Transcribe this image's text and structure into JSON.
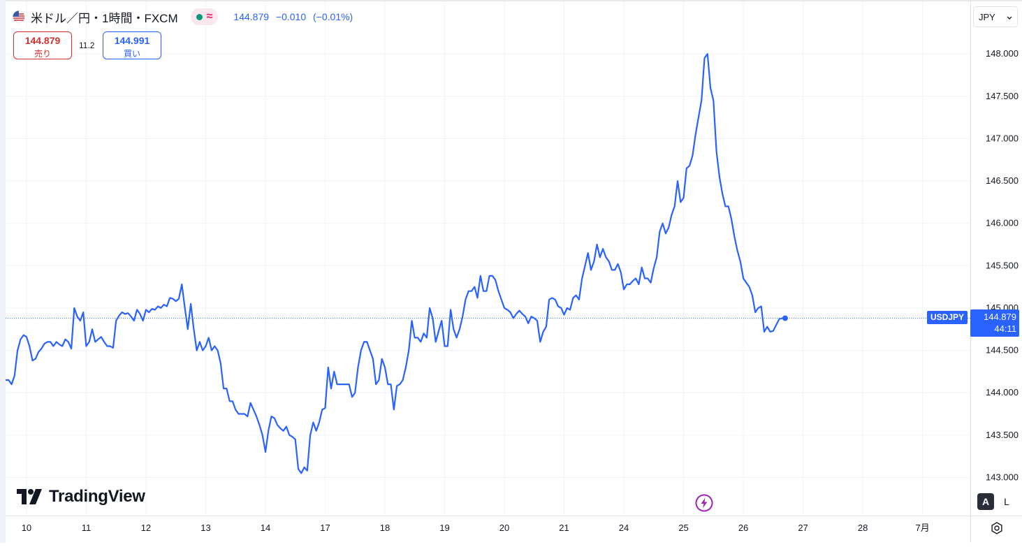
{
  "header": {
    "title": "米ドル／円・1時間・FXCM",
    "last": "144.879",
    "change": "−0.010",
    "change_pct": "(−0.01%)"
  },
  "trade": {
    "sell_price": "144.879",
    "sell_label": "売り",
    "spread": "11.2",
    "buy_price": "144.991",
    "buy_label": "買い"
  },
  "currency": "JPY",
  "last_price_label": {
    "symbol": "USDJPY",
    "price": "144.879",
    "countdown": "44:11"
  },
  "brand": "TradingView",
  "buttons": {
    "auto": "A",
    "log": "L"
  },
  "colors": {
    "line": "#2962ff",
    "sell": "#d32f2f",
    "buy": "#2962ff",
    "market_open": "#089981"
  },
  "chart_data": {
    "type": "line",
    "series": [
      {
        "x_start": -0.35,
        "x_step": 0.05,
        "values": [
          144.15,
          144.15,
          144.1,
          144.2,
          144.5,
          144.63,
          144.68,
          144.66,
          144.55,
          144.38,
          144.4,
          144.48,
          144.52,
          144.58,
          144.6,
          144.6,
          144.55,
          144.6,
          144.57,
          144.55,
          144.63,
          144.6,
          144.52,
          145.0,
          144.9,
          144.85,
          144.95,
          144.55,
          144.6,
          144.75,
          144.6,
          144.63,
          144.66,
          144.6,
          144.55,
          144.55,
          144.53,
          144.85,
          144.91,
          144.95,
          144.93,
          144.94,
          144.9,
          144.85,
          144.98,
          144.93,
          144.85,
          144.98,
          144.95,
          144.99,
          144.98,
          145.02,
          145.0,
          145.04,
          145.02,
          145.12,
          145.11,
          145.08,
          145.11,
          145.28,
          145.01,
          144.75,
          145.05,
          144.75,
          144.5,
          144.6,
          144.5,
          144.55,
          144.65,
          144.5,
          144.55,
          144.5,
          144.35,
          144.05,
          144.05,
          143.9,
          143.9,
          143.8,
          143.75,
          143.75,
          143.75,
          143.72,
          143.88,
          143.8,
          143.72,
          143.62,
          143.5,
          143.3,
          143.55,
          143.72,
          143.7,
          143.62,
          143.58,
          143.55,
          143.6,
          143.5,
          143.48,
          143.45,
          143.1,
          143.05,
          143.12,
          143.08,
          143.5,
          143.65,
          143.55,
          143.65,
          143.8,
          143.82,
          144.3,
          144.05,
          144.25,
          144.1,
          144.1,
          144.1,
          144.1,
          144.1,
          143.95,
          144.0,
          144.3,
          144.5,
          144.6,
          144.6,
          144.5,
          144.4,
          144.1,
          144.15,
          144.4,
          144.3,
          144.1,
          144.1,
          143.8,
          144.08,
          144.1,
          144.15,
          144.3,
          144.5,
          144.85,
          144.65,
          144.65,
          144.6,
          144.7,
          144.65,
          145.0,
          144.88,
          144.6,
          144.73,
          144.85,
          144.55,
          144.55,
          144.98,
          144.75,
          144.65,
          144.75,
          144.9,
          145.1,
          145.2,
          145.2,
          145.25,
          145.12,
          145.38,
          145.2,
          145.2,
          145.38,
          145.38,
          145.33,
          145.2,
          145.1,
          145.0,
          144.98,
          144.95,
          144.88,
          144.93,
          144.97,
          144.93,
          144.9,
          144.82,
          144.9,
          144.88,
          144.85,
          144.6,
          144.72,
          144.78,
          145.1,
          145.12,
          145.1,
          145.02,
          145.0,
          144.92,
          145.0,
          144.98,
          145.12,
          145.15,
          145.1,
          145.35,
          145.5,
          145.65,
          145.45,
          145.55,
          145.75,
          145.6,
          145.7,
          145.6,
          145.55,
          145.45,
          145.45,
          145.52,
          145.42,
          145.22,
          145.28,
          145.28,
          145.32,
          145.35,
          145.28,
          145.48,
          145.35,
          145.35,
          145.3,
          145.47,
          145.6,
          145.9,
          146.0,
          145.88,
          145.95,
          146.1,
          146.2,
          146.5,
          146.25,
          146.3,
          146.65,
          146.68,
          146.8,
          147.05,
          147.25,
          147.45,
          147.95,
          148.0,
          147.6,
          147.45,
          146.85,
          146.55,
          146.35,
          146.2,
          146.2,
          146.05,
          145.85,
          145.68,
          145.55,
          145.35,
          145.3,
          145.25,
          145.15,
          144.95,
          145.0,
          145.02,
          144.72,
          144.78,
          144.72,
          144.73,
          144.8,
          144.87,
          144.88,
          144.88
        ]
      }
    ],
    "x_ticks": [
      {
        "pos": 0,
        "label": "10"
      },
      {
        "pos": 1,
        "label": "11"
      },
      {
        "pos": 2,
        "label": "12"
      },
      {
        "pos": 3,
        "label": "13"
      },
      {
        "pos": 4,
        "label": "14"
      },
      {
        "pos": 5,
        "label": "17"
      },
      {
        "pos": 6,
        "label": "18"
      },
      {
        "pos": 7,
        "label": "19"
      },
      {
        "pos": 8,
        "label": "20"
      },
      {
        "pos": 9,
        "label": "21"
      },
      {
        "pos": 10,
        "label": "24"
      },
      {
        "pos": 11,
        "label": "25"
      },
      {
        "pos": 12,
        "label": "26"
      },
      {
        "pos": 13,
        "label": "27"
      },
      {
        "pos": 14,
        "label": "28"
      },
      {
        "pos": 15,
        "label": "7月"
      }
    ],
    "y_ticks": [
      "143.000",
      "143.500",
      "144.000",
      "144.500",
      "145.000",
      "145.500",
      "146.000",
      "146.500",
      "147.000",
      "147.500",
      "148.000"
    ],
    "ylim": [
      142.55,
      148.62
    ],
    "xlim": [
      -0.35,
      15.8
    ],
    "last_value": 144.879,
    "xlabel": "",
    "ylabel": "",
    "grid": true,
    "legend": "none"
  }
}
